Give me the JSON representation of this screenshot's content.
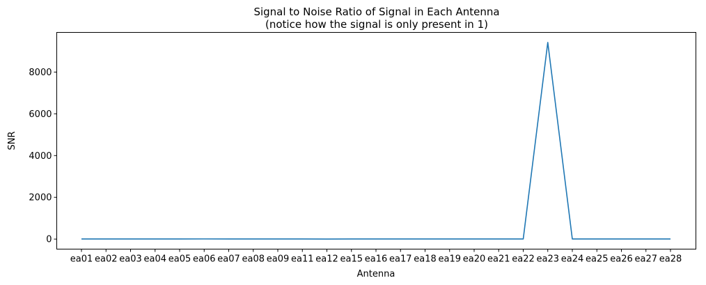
{
  "chart_data": {
    "type": "line",
    "title": "Signal to Noise Ratio of Signal in Each Antenna",
    "subtitle": "(notice how the signal is only present in 1)",
    "xlabel": "Antenna",
    "ylabel": "SNR",
    "categories": [
      "ea01",
      "ea02",
      "ea03",
      "ea04",
      "ea05",
      "ea06",
      "ea07",
      "ea08",
      "ea09",
      "ea11",
      "ea12",
      "ea15",
      "ea16",
      "ea17",
      "ea18",
      "ea19",
      "ea20",
      "ea21",
      "ea22",
      "ea23",
      "ea24",
      "ea25",
      "ea26",
      "ea27",
      "ea28"
    ],
    "series": [
      {
        "color": "#1f77b4",
        "values": [
          5,
          5,
          5,
          5,
          5,
          8,
          5,
          5,
          5,
          5,
          3,
          5,
          5,
          5,
          5,
          5,
          5,
          5,
          5,
          9420,
          5,
          5,
          5,
          5,
          5
        ]
      }
    ],
    "yticks": [
      0,
      2000,
      4000,
      6000,
      8000
    ],
    "ylim": [
      -480,
      9900
    ],
    "grid": false,
    "legend": "none"
  }
}
